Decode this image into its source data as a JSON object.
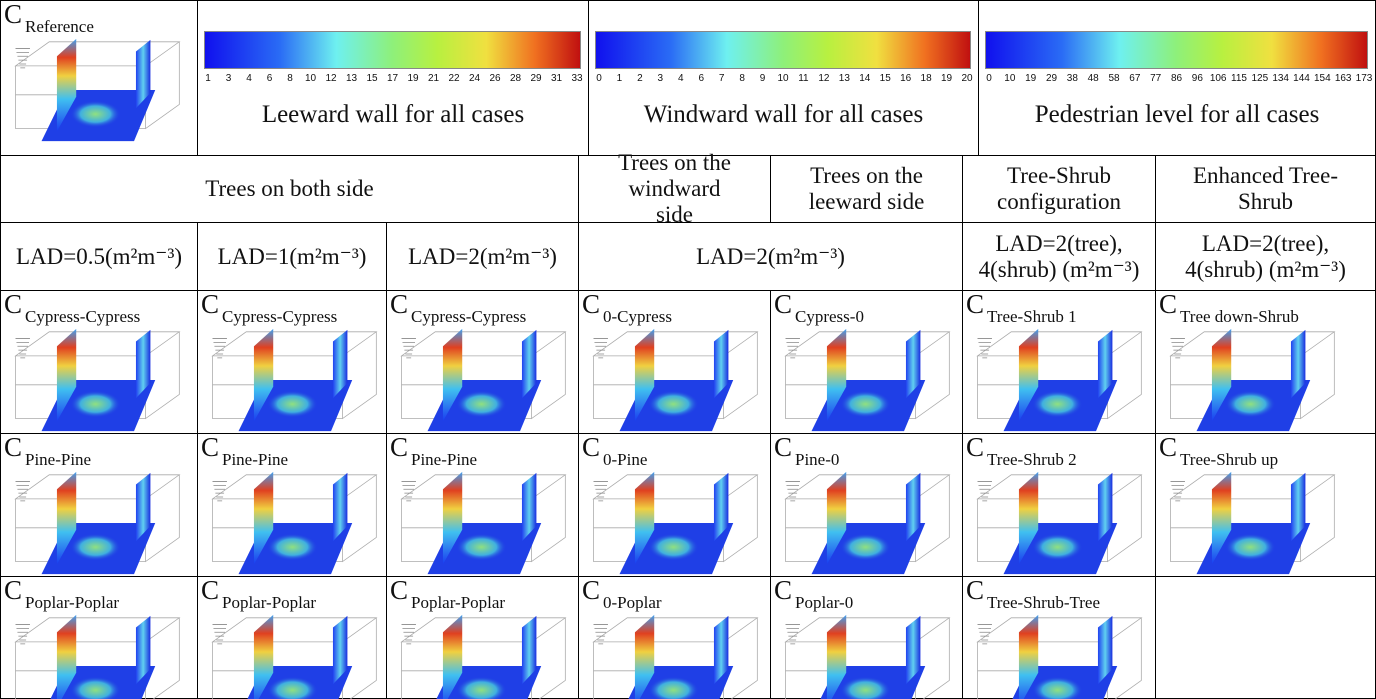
{
  "reference": {
    "letter": "C",
    "label": "Reference"
  },
  "colorbars": [
    {
      "ticks": [
        "1",
        "3",
        "4",
        "6",
        "8",
        "10",
        "12",
        "13",
        "15",
        "17",
        "19",
        "21",
        "22",
        "24",
        "26",
        "28",
        "29",
        "31",
        "33"
      ],
      "caption": "Leeward wall for all cases"
    },
    {
      "ticks": [
        "0",
        "1",
        "2",
        "3",
        "4",
        "6",
        "7",
        "8",
        "9",
        "10",
        "11",
        "12",
        "13",
        "14",
        "15",
        "16",
        "18",
        "19",
        "20"
      ],
      "caption": "Windward wall for all cases"
    },
    {
      "ticks": [
        "0",
        "10",
        "19",
        "29",
        "38",
        "48",
        "58",
        "67",
        "77",
        "86",
        "96",
        "106",
        "115",
        "125",
        "134",
        "144",
        "154",
        "163",
        "173"
      ],
      "caption": "Pedestrian level for all cases"
    }
  ],
  "group_headers": [
    "Trees on both side",
    "Trees on the windward side",
    "Trees on the leeward side",
    "Tree-Shrub configuration",
    "Enhanced Tree-Shrub"
  ],
  "lad_headers": [
    "LAD=0.5(m²m⁻³)",
    "LAD=1(m²m⁻³)",
    "LAD=2(m²m⁻³)",
    "LAD=2(m²m⁻³)",
    "LAD=2(tree), 4(shrub) (m²m⁻³)",
    "LAD=2(tree), 4(shrub) (m²m⁻³)"
  ],
  "grid": {
    "rows": [
      [
        {
          "letter": "C",
          "label": "Cypress-Cypress"
        },
        {
          "letter": "C",
          "label": "Cypress-Cypress"
        },
        {
          "letter": "C",
          "label": "Cypress-Cypress"
        },
        {
          "letter": "C",
          "label": "0-Cypress"
        },
        {
          "letter": "C",
          "label": "Cypress-0"
        },
        {
          "letter": "C",
          "label": "Tree-Shrub 1"
        },
        {
          "letter": "C",
          "label": "Tree down-Shrub"
        }
      ],
      [
        {
          "letter": "C",
          "label": "Pine-Pine"
        },
        {
          "letter": "C",
          "label": "Pine-Pine"
        },
        {
          "letter": "C",
          "label": "Pine-Pine"
        },
        {
          "letter": "C",
          "label": "0-Pine"
        },
        {
          "letter": "C",
          "label": "Pine-0"
        },
        {
          "letter": "C",
          "label": "Tree-Shrub 2"
        },
        {
          "letter": "C",
          "label": "Tree-Shrub up"
        }
      ],
      [
        {
          "letter": "C",
          "label": "Poplar-Poplar"
        },
        {
          "letter": "C",
          "label": "Poplar-Poplar"
        },
        {
          "letter": "C",
          "label": "Poplar-Poplar"
        },
        {
          "letter": "C",
          "label": "0-Poplar"
        },
        {
          "letter": "C",
          "label": "Poplar-0"
        },
        {
          "letter": "C",
          "label": "Tree-Shrub-Tree"
        }
      ]
    ]
  }
}
